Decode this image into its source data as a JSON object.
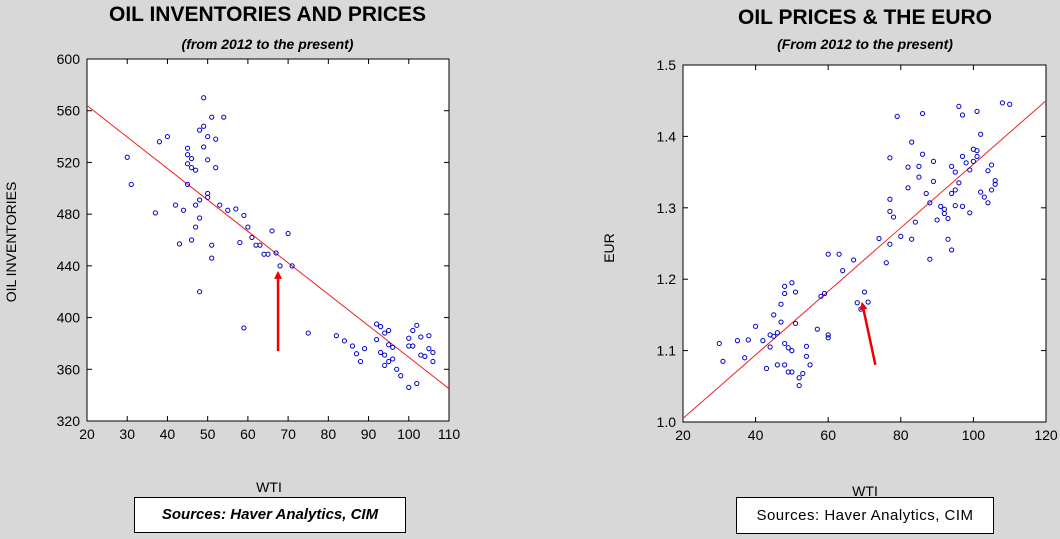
{
  "charts": [
    {
      "title": "OIL INVENTORIES AND PRICES",
      "subtitle": "(from 2012 to the present)",
      "source": "Sources: Haver Analytics, CIM"
    },
    {
      "title": "OIL PRICES & THE EURO",
      "subtitle": "(From 2012 to the present)",
      "source": "Sources: Haver Analytics, CIM"
    }
  ],
  "colors": {
    "background": "#d8d8d8",
    "plot_bg": "#ffffff",
    "points": "#0000cc",
    "fit_line": "#ee2222",
    "arrow": "#ee0000"
  },
  "chart_data": [
    {
      "type": "scatter",
      "title": "OIL INVENTORIES AND PRICES",
      "subtitle": "(from 2012 to the present)",
      "xlabel": "WTI",
      "ylabel": "OIL INVENTORIES",
      "xlim": [
        20,
        110
      ],
      "ylim": [
        320,
        600
      ],
      "xticks": [
        20,
        30,
        40,
        50,
        60,
        70,
        80,
        90,
        100,
        110
      ],
      "yticks": [
        320,
        360,
        400,
        440,
        480,
        520,
        560,
        600
      ],
      "grid": false,
      "fit_line": [
        [
          20,
          564
        ],
        [
          110,
          345
        ]
      ],
      "arrow": {
        "from": [
          67.5,
          374
        ],
        "to": [
          67.5,
          433
        ]
      },
      "points": [
        [
          30,
          524
        ],
        [
          31,
          503
        ],
        [
          37,
          481
        ],
        [
          38,
          536
        ],
        [
          40,
          540
        ],
        [
          42,
          487
        ],
        [
          43,
          457
        ],
        [
          44,
          483
        ],
        [
          45,
          519
        ],
        [
          45,
          503
        ],
        [
          45,
          531
        ],
        [
          45,
          526
        ],
        [
          46,
          523
        ],
        [
          46,
          460
        ],
        [
          46,
          516
        ],
        [
          47,
          487
        ],
        [
          47,
          470
        ],
        [
          47,
          514
        ],
        [
          48,
          491
        ],
        [
          48,
          420
        ],
        [
          48,
          477
        ],
        [
          48,
          545
        ],
        [
          49,
          532
        ],
        [
          49,
          548
        ],
        [
          49,
          570
        ],
        [
          50,
          496
        ],
        [
          50,
          522
        ],
        [
          50,
          493
        ],
        [
          50,
          540
        ],
        [
          51,
          446
        ],
        [
          51,
          456
        ],
        [
          51,
          555
        ],
        [
          52,
          516
        ],
        [
          52,
          538
        ],
        [
          53,
          487
        ],
        [
          54,
          555
        ],
        [
          55,
          483
        ],
        [
          57,
          484
        ],
        [
          58,
          458
        ],
        [
          59,
          392
        ],
        [
          59,
          479
        ],
        [
          60,
          470
        ],
        [
          61,
          462
        ],
        [
          62,
          456
        ],
        [
          63,
          456
        ],
        [
          64,
          449
        ],
        [
          65,
          449
        ],
        [
          66,
          467
        ],
        [
          67,
          450
        ],
        [
          68,
          440
        ],
        [
          70,
          465
        ],
        [
          71,
          440
        ],
        [
          75,
          388
        ],
        [
          82,
          386
        ],
        [
          84,
          382
        ],
        [
          86,
          378
        ],
        [
          87,
          372
        ],
        [
          88,
          366
        ],
        [
          89,
          376
        ],
        [
          92,
          395
        ],
        [
          92,
          383
        ],
        [
          93,
          393
        ],
        [
          93,
          373
        ],
        [
          94,
          363
        ],
        [
          94,
          371
        ],
        [
          94,
          388
        ],
        [
          95,
          390
        ],
        [
          95,
          379
        ],
        [
          95,
          366
        ],
        [
          96,
          368
        ],
        [
          96,
          377
        ],
        [
          97,
          360
        ],
        [
          98,
          355
        ],
        [
          100,
          346
        ],
        [
          100,
          378
        ],
        [
          100,
          384
        ],
        [
          101,
          378
        ],
        [
          101,
          390
        ],
        [
          102,
          394
        ],
        [
          102,
          349
        ],
        [
          103,
          371
        ],
        [
          103,
          385
        ],
        [
          104,
          370
        ],
        [
          105,
          376
        ],
        [
          105,
          386
        ],
        [
          106,
          366
        ],
        [
          106,
          373
        ]
      ]
    },
    {
      "type": "scatter",
      "title": "OIL PRICES & THE EURO",
      "subtitle": "(From 2012 to the present)",
      "xlabel": "WTI",
      "ylabel": "EUR",
      "xlim": [
        20,
        120
      ],
      "ylim": [
        1.0,
        1.5
      ],
      "xticks": [
        20,
        40,
        60,
        80,
        100,
        120
      ],
      "yticks": [
        1.0,
        1.1,
        1.2,
        1.3,
        1.4,
        1.5
      ],
      "grid": false,
      "fit_line": [
        [
          20,
          1.005
        ],
        [
          120,
          1.45
        ]
      ],
      "arrow": {
        "from": [
          73,
          1.08
        ],
        "to": [
          69.5,
          1.163
        ]
      },
      "points": [
        [
          30,
          1.11
        ],
        [
          31,
          1.085
        ],
        [
          35,
          1.114
        ],
        [
          37,
          1.09
        ],
        [
          38,
          1.115
        ],
        [
          40,
          1.134
        ],
        [
          42,
          1.114
        ],
        [
          43,
          1.075
        ],
        [
          44,
          1.105
        ],
        [
          44,
          1.122
        ],
        [
          45,
          1.12
        ],
        [
          45,
          1.15
        ],
        [
          46,
          1.08
        ],
        [
          46,
          1.125
        ],
        [
          47,
          1.165
        ],
        [
          47,
          1.14
        ],
        [
          48,
          1.19
        ],
        [
          48,
          1.18
        ],
        [
          48,
          1.11
        ],
        [
          48,
          1.08
        ],
        [
          49,
          1.104
        ],
        [
          49,
          1.07
        ],
        [
          50,
          1.1
        ],
        [
          50,
          1.07
        ],
        [
          50,
          1.195
        ],
        [
          51,
          1.138
        ],
        [
          51,
          1.182
        ],
        [
          52,
          1.062
        ],
        [
          52,
          1.051
        ],
        [
          53,
          1.068
        ],
        [
          54,
          1.092
        ],
        [
          54,
          1.106
        ],
        [
          55,
          1.08
        ],
        [
          57,
          1.13
        ],
        [
          58,
          1.176
        ],
        [
          59,
          1.18
        ],
        [
          60,
          1.118
        ],
        [
          60,
          1.122
        ],
        [
          60,
          1.235
        ],
        [
          63,
          1.235
        ],
        [
          64,
          1.212
        ],
        [
          67,
          1.227
        ],
        [
          68,
          1.167
        ],
        [
          69,
          1.158
        ],
        [
          70,
          1.182
        ],
        [
          71,
          1.168
        ],
        [
          74,
          1.257
        ],
        [
          76,
          1.223
        ],
        [
          77,
          1.249
        ],
        [
          77,
          1.295
        ],
        [
          77,
          1.312
        ],
        [
          77,
          1.37
        ],
        [
          78,
          1.287
        ],
        [
          79,
          1.428
        ],
        [
          80,
          1.26
        ],
        [
          82,
          1.328
        ],
        [
          82,
          1.357
        ],
        [
          83,
          1.392
        ],
        [
          83,
          1.256
        ],
        [
          84,
          1.28
        ],
        [
          85,
          1.358
        ],
        [
          85,
          1.343
        ],
        [
          86,
          1.375
        ],
        [
          86,
          1.432
        ],
        [
          87,
          1.32
        ],
        [
          88,
          1.307
        ],
        [
          88,
          1.228
        ],
        [
          89,
          1.337
        ],
        [
          89,
          1.365
        ],
        [
          90,
          1.283
        ],
        [
          91,
          1.302
        ],
        [
          92,
          1.298
        ],
        [
          92,
          1.292
        ],
        [
          93,
          1.256
        ],
        [
          93,
          1.285
        ],
        [
          94,
          1.241
        ],
        [
          94,
          1.32
        ],
        [
          94,
          1.358
        ],
        [
          95,
          1.325
        ],
        [
          95,
          1.303
        ],
        [
          95,
          1.35
        ],
        [
          96,
          1.442
        ],
        [
          96,
          1.335
        ],
        [
          97,
          1.43
        ],
        [
          97,
          1.372
        ],
        [
          97,
          1.302
        ],
        [
          98,
          1.363
        ],
        [
          99,
          1.293
        ],
        [
          99,
          1.353
        ],
        [
          100,
          1.365
        ],
        [
          100,
          1.382
        ],
        [
          101,
          1.372
        ],
        [
          101,
          1.435
        ],
        [
          101,
          1.38
        ],
        [
          102,
          1.322
        ],
        [
          102,
          1.403
        ],
        [
          103,
          1.315
        ],
        [
          104,
          1.307
        ],
        [
          104,
          1.352
        ],
        [
          105,
          1.36
        ],
        [
          105,
          1.325
        ],
        [
          106,
          1.333
        ],
        [
          106,
          1.338
        ],
        [
          108,
          1.447
        ],
        [
          110,
          1.445
        ]
      ]
    }
  ]
}
